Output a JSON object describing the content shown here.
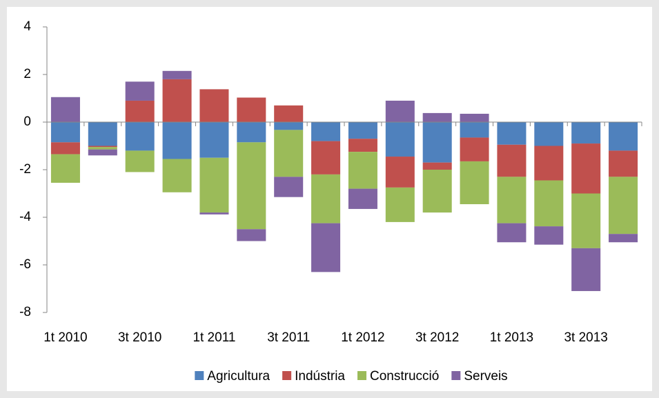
{
  "chart_data": {
    "type": "stacked_bar",
    "categories": [
      "1t 2010",
      null,
      "3t 2010",
      null,
      "1t 2011",
      null,
      "3t 2011",
      null,
      "1t 2012",
      null,
      "3t 2012",
      null,
      "1t 2013",
      null,
      "3t 2013",
      null
    ],
    "series": [
      {
        "name": "Agricultura",
        "color": "#4f81bd",
        "values": [
          -0.85,
          -1.0,
          -1.2,
          -1.55,
          -1.5,
          -0.85,
          -0.33,
          -0.8,
          -0.7,
          -1.45,
          -1.7,
          -0.65,
          -0.95,
          -1.0,
          -0.9,
          -1.2
        ]
      },
      {
        "name": "Indústria",
        "color": "#c0504d",
        "values": [
          -0.5,
          -0.05,
          0.9,
          1.8,
          1.38,
          1.03,
          0.7,
          -1.4,
          -0.55,
          -1.3,
          -0.3,
          -1.0,
          -1.35,
          -1.45,
          -2.1,
          -1.1
        ]
      },
      {
        "name": "Construcció",
        "color": "#9bbb59",
        "values": [
          -1.2,
          -0.1,
          -0.9,
          -1.4,
          -2.3,
          -3.65,
          -1.97,
          -2.05,
          -1.55,
          -1.45,
          -1.8,
          -1.8,
          -1.95,
          -1.93,
          -2.3,
          -2.4
        ]
      },
      {
        "name": "Serveis",
        "color": "#8064a2",
        "values": [
          1.05,
          -0.25,
          0.8,
          0.35,
          -0.08,
          -0.5,
          -0.85,
          -2.05,
          -0.85,
          0.9,
          0.38,
          0.35,
          -0.8,
          -0.77,
          -1.8,
          -0.35
        ]
      }
    ],
    "ylim": [
      -8,
      4
    ],
    "yticks": [
      -8,
      -6,
      -4,
      -2,
      0,
      2,
      4
    ],
    "legend": "bottom"
  }
}
